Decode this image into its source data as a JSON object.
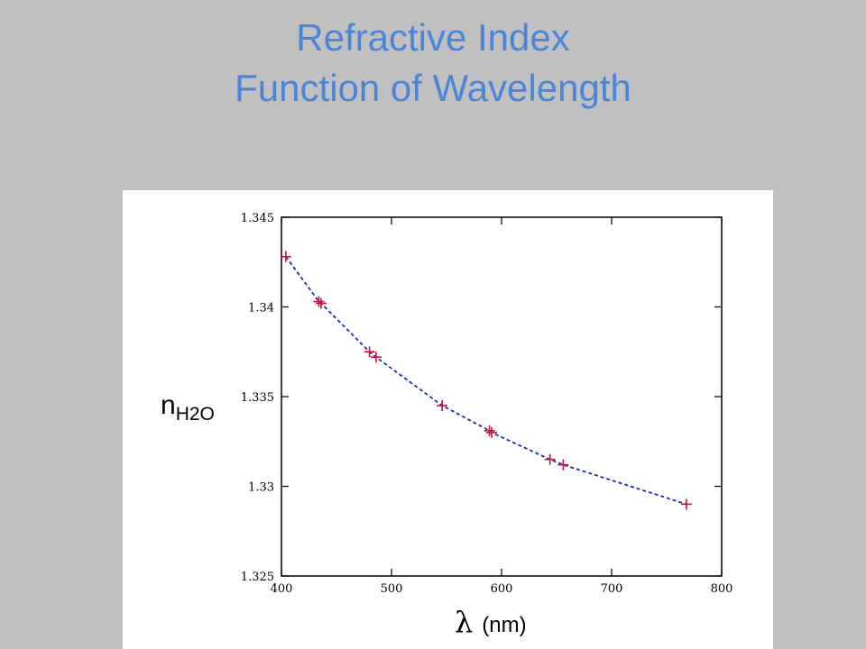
{
  "slide": {
    "title_line1": "Refractive Index",
    "title_line2": "Function of Wavelength"
  },
  "chart_data": {
    "type": "scatter",
    "title": "",
    "xlabel_symbol": "λ",
    "xlabel_unit": "(nm)",
    "ylabel_base": "n",
    "ylabel_sub": "H2O",
    "xlim": [
      400,
      800
    ],
    "ylim": [
      1.325,
      1.345
    ],
    "x_ticks": [
      400,
      500,
      600,
      700,
      800
    ],
    "x_tick_labels": [
      "400",
      "500",
      "600",
      "700",
      "800"
    ],
    "y_ticks": [
      1.325,
      1.33,
      1.335,
      1.34,
      1.345
    ],
    "y_tick_labels": [
      "1.325",
      "1.33",
      "1.335",
      "1.34",
      "1.345"
    ],
    "grid": false,
    "series": [
      {
        "type": "scatter",
        "marker": "+",
        "color": "#cc1133",
        "x": [
          404,
          434,
          436,
          480,
          486,
          546,
          589,
          591,
          644,
          656,
          768
        ],
        "y": [
          1.3428,
          1.3403,
          1.3402,
          1.3375,
          1.3372,
          1.3345,
          1.3331,
          1.333,
          1.3315,
          1.3312,
          1.329
        ]
      },
      {
        "type": "line",
        "style": "dashed",
        "color": "#1a2bb8",
        "x": [
          404,
          434,
          436,
          480,
          486,
          546,
          589,
          591,
          644,
          656,
          768
        ],
        "y": [
          1.3428,
          1.3403,
          1.3402,
          1.3375,
          1.3372,
          1.3345,
          1.3331,
          1.333,
          1.3315,
          1.3312,
          1.329
        ]
      }
    ]
  }
}
